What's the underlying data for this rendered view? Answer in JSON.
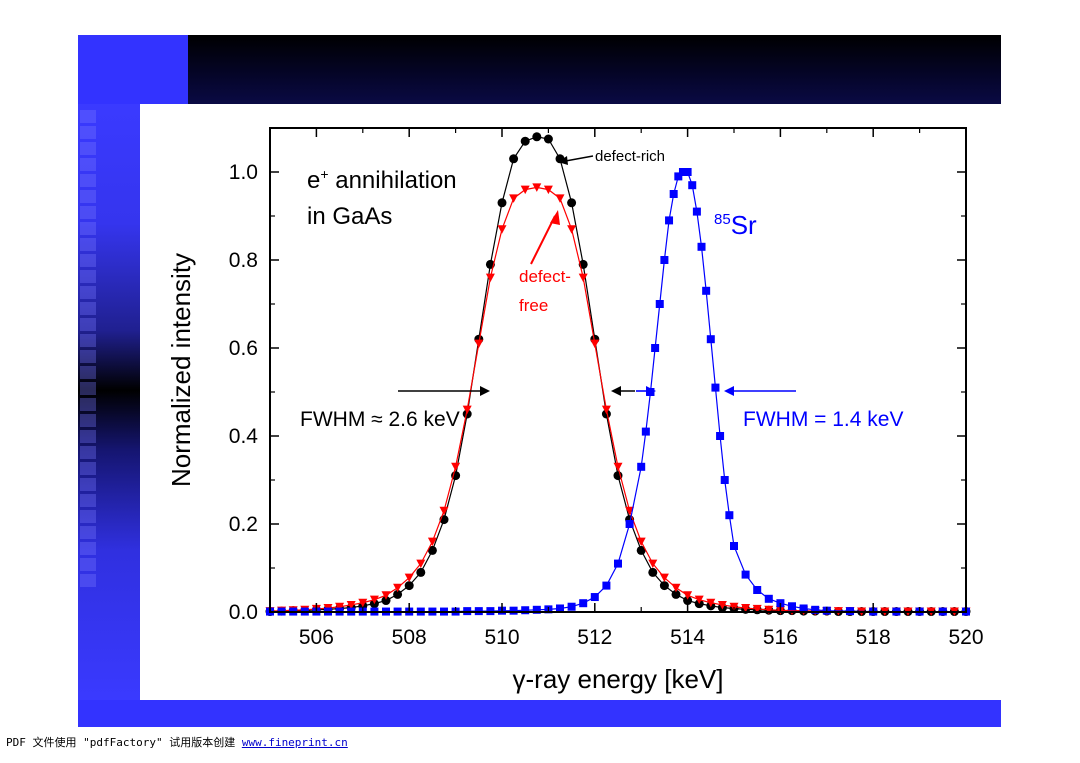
{
  "footer": {
    "text": "PDF 文件使用 \"pdfFactory\" 试用版本创建 ",
    "link": "www.fineprint.cn"
  },
  "colors": {
    "slide_blue": "#3333ff",
    "defect_rich": "#000000",
    "defect_free": "#ff0000",
    "sr85": "#0000ff"
  },
  "chart_data": {
    "type": "scatter",
    "xlabel": "γ-ray energy [keV]",
    "ylabel": "Normalized intensity",
    "xlim": [
      505,
      520
    ],
    "ylim": [
      0.0,
      1.1
    ],
    "xticks": [
      "506",
      "508",
      "510",
      "512",
      "514",
      "516",
      "518",
      "520"
    ],
    "yticks": [
      "0.0",
      "0.2",
      "0.4",
      "0.6",
      "0.8",
      "1.0"
    ],
    "grid": false,
    "series": [
      {
        "name": "defect-rich",
        "color": "#000000",
        "marker": "circle",
        "x": [
          505.0,
          505.25,
          505.5,
          505.75,
          506.0,
          506.25,
          506.5,
          506.75,
          507.0,
          507.25,
          507.5,
          507.75,
          508.0,
          508.25,
          508.5,
          508.75,
          509.0,
          509.25,
          509.5,
          509.75,
          510.0,
          510.25,
          510.5,
          510.75,
          511.0,
          511.25,
          511.5,
          511.75,
          512.0,
          512.25,
          512.5,
          512.75,
          513.0,
          513.25,
          513.5,
          513.75,
          514.0,
          514.25,
          514.5,
          514.75,
          515.0,
          515.25,
          515.5,
          515.75,
          516.0,
          516.25,
          516.5,
          516.75,
          517.0,
          517.25,
          517.5,
          517.75,
          518.0,
          518.25,
          518.5,
          518.75,
          519.0,
          519.25,
          519.5,
          519.75,
          520.0
        ],
        "y": [
          0.001,
          0.002,
          0.003,
          0.003,
          0.005,
          0.006,
          0.008,
          0.01,
          0.014,
          0.019,
          0.026,
          0.04,
          0.06,
          0.09,
          0.14,
          0.21,
          0.31,
          0.45,
          0.62,
          0.79,
          0.93,
          1.03,
          1.07,
          1.08,
          1.075,
          1.03,
          0.93,
          0.79,
          0.62,
          0.45,
          0.31,
          0.21,
          0.14,
          0.09,
          0.06,
          0.04,
          0.026,
          0.019,
          0.014,
          0.01,
          0.008,
          0.006,
          0.005,
          0.004,
          0.003,
          0.003,
          0.002,
          0.002,
          0.002,
          0.001,
          0.001,
          0.001,
          0.001,
          0.001,
          0.001,
          0.001,
          0.001,
          0.001,
          0.001,
          0.001,
          0.001
        ]
      },
      {
        "name": "defect-free",
        "color": "#ff0000",
        "marker": "triangle-down",
        "x": [
          505.0,
          505.25,
          505.5,
          505.75,
          506.0,
          506.25,
          506.5,
          506.75,
          507.0,
          507.25,
          507.5,
          507.75,
          508.0,
          508.25,
          508.5,
          508.75,
          509.0,
          509.25,
          509.5,
          509.75,
          510.0,
          510.25,
          510.5,
          510.75,
          511.0,
          511.25,
          511.5,
          511.75,
          512.0,
          512.25,
          512.5,
          512.75,
          513.0,
          513.25,
          513.5,
          513.75,
          514.0,
          514.25,
          514.5,
          514.75,
          515.0,
          515.25,
          515.5,
          515.75,
          516.0,
          516.25,
          516.5,
          516.75,
          517.0,
          517.25,
          517.5,
          517.75,
          518.0,
          518.25,
          518.5,
          518.75,
          519.0,
          519.25,
          519.5,
          519.75,
          520.0
        ],
        "y": [
          0.002,
          0.003,
          0.004,
          0.005,
          0.007,
          0.009,
          0.012,
          0.016,
          0.021,
          0.028,
          0.038,
          0.055,
          0.078,
          0.11,
          0.16,
          0.23,
          0.33,
          0.46,
          0.61,
          0.76,
          0.87,
          0.94,
          0.96,
          0.965,
          0.96,
          0.94,
          0.87,
          0.76,
          0.61,
          0.46,
          0.33,
          0.23,
          0.16,
          0.11,
          0.078,
          0.055,
          0.038,
          0.028,
          0.021,
          0.016,
          0.012,
          0.009,
          0.007,
          0.005,
          0.004,
          0.003,
          0.003,
          0.002,
          0.002,
          0.002,
          0.002,
          0.001,
          0.001,
          0.001,
          0.001,
          0.001,
          0.001,
          0.001,
          0.001,
          0.001,
          0.001
        ]
      },
      {
        "name": "85Sr",
        "color": "#0000ff",
        "marker": "square",
        "x": [
          505.0,
          505.25,
          505.5,
          505.75,
          506.0,
          506.25,
          506.5,
          506.75,
          507.0,
          507.25,
          507.5,
          507.75,
          508.0,
          508.25,
          508.5,
          508.75,
          509.0,
          509.25,
          509.5,
          509.75,
          510.0,
          510.25,
          510.5,
          510.75,
          511.0,
          511.25,
          511.5,
          511.75,
          512.0,
          512.25,
          512.5,
          512.75,
          513.0,
          513.1,
          513.2,
          513.3,
          513.4,
          513.5,
          513.6,
          513.7,
          513.8,
          513.9,
          514.0,
          514.1,
          514.2,
          514.3,
          514.4,
          514.5,
          514.6,
          514.7,
          514.8,
          514.9,
          515.0,
          515.25,
          515.5,
          515.75,
          516.0,
          516.25,
          516.5,
          516.75,
          517.0,
          517.5,
          518.0,
          518.5,
          519.0,
          519.5,
          520.0
        ],
        "y": [
          0.001,
          0.001,
          0.001,
          0.001,
          0.001,
          0.001,
          0.001,
          0.001,
          0.001,
          0.001,
          0.001,
          0.001,
          0.001,
          0.001,
          0.001,
          0.001,
          0.001,
          0.002,
          0.002,
          0.002,
          0.003,
          0.003,
          0.004,
          0.005,
          0.006,
          0.008,
          0.012,
          0.02,
          0.034,
          0.06,
          0.11,
          0.2,
          0.33,
          0.41,
          0.5,
          0.6,
          0.7,
          0.8,
          0.89,
          0.95,
          0.99,
          1.0,
          1.0,
          0.97,
          0.91,
          0.83,
          0.73,
          0.62,
          0.51,
          0.4,
          0.3,
          0.22,
          0.15,
          0.085,
          0.05,
          0.03,
          0.02,
          0.013,
          0.008,
          0.005,
          0.003,
          0.002,
          0.001,
          0.001,
          0.001,
          0.001,
          0.001
        ]
      }
    ],
    "annotations": {
      "title_line1": "e",
      "title_sup": "+",
      "title_line1_rest": " annihilation",
      "title_line2": "in GaAs",
      "defect_rich_label": "defect-rich",
      "defect_free_label_line1": "defect-",
      "defect_free_label_line2": "free",
      "sr_sup": "85",
      "sr_label": "Sr",
      "fwhm_black": "FWHM ≈ 2.6 keV",
      "fwhm_blue": "FWHM = 1.4 keV"
    }
  }
}
